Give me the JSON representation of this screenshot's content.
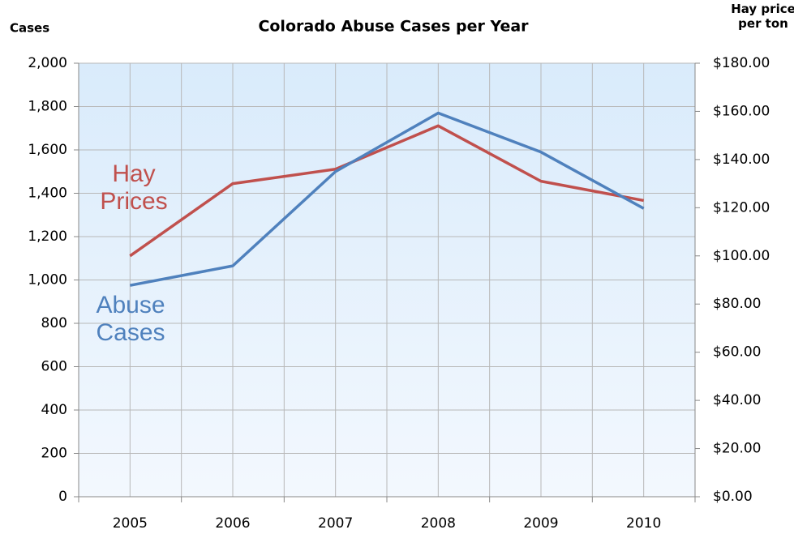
{
  "chart_data": {
    "type": "line",
    "title": "Colorado Abuse Cases per Year",
    "ylabel": "Cases",
    "y2label": "Hay price per ton",
    "categories": [
      "2005",
      "2006",
      "2007",
      "2008",
      "2009",
      "2010"
    ],
    "series": [
      {
        "name": "Hay Prices",
        "color": "#c0504d",
        "axis": "y2",
        "values": [
          100,
          130,
          136,
          154,
          131,
          123
        ]
      },
      {
        "name": "Abuse Cases",
        "color": "#4f81bd",
        "values": [
          975,
          1065,
          1500,
          1770,
          1590,
          1330
        ]
      }
    ],
    "ylim": [
      0,
      2000
    ],
    "yticks": [
      0,
      200,
      400,
      600,
      800,
      {
        "value": 1000,
        "label": "1,000"
      },
      {
        "value": 1200,
        "label": "1,200"
      },
      {
        "value": 1400,
        "label": "1,400"
      },
      {
        "value": 1600,
        "label": "1,600"
      },
      {
        "value": 1800,
        "label": "1,800"
      },
      {
        "value": 2000,
        "label": "2,000"
      }
    ],
    "y2lim": [
      0,
      180
    ],
    "y2ticks": [
      {
        "value": 0,
        "label": "$0.00"
      },
      {
        "value": 20,
        "label": "$20.00"
      },
      {
        "value": 40,
        "label": "$40.00"
      },
      {
        "value": 60,
        "label": "$60.00"
      },
      {
        "value": 80,
        "label": "$80.00"
      },
      {
        "value": 100,
        "label": "$100.00"
      },
      {
        "value": 120,
        "label": "$120.00"
      },
      {
        "value": 140,
        "label": "$140.00"
      },
      {
        "value": 160,
        "label": "$160.00"
      },
      {
        "value": 180,
        "label": "$180.00"
      }
    ],
    "grid": true
  }
}
